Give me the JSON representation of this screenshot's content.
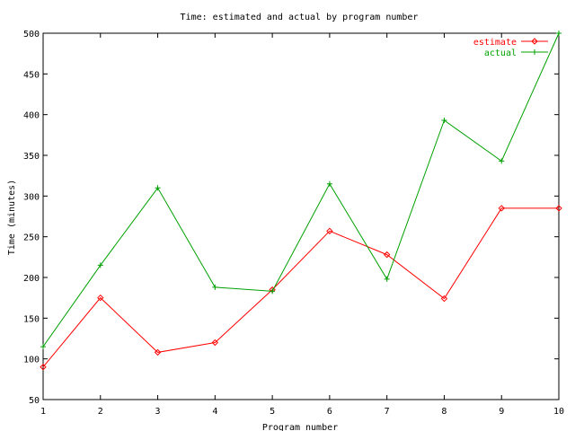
{
  "chart_data": {
    "type": "line",
    "title": "Time: estimated and actual by program number",
    "xlabel": "Program number",
    "ylabel": "Time (minutes)",
    "xlim": [
      1,
      10
    ],
    "ylim": [
      50,
      500
    ],
    "x_ticks": [
      1,
      2,
      3,
      4,
      5,
      6,
      7,
      8,
      9,
      10
    ],
    "y_ticks": [
      50,
      100,
      150,
      200,
      250,
      300,
      350,
      400,
      450,
      500
    ],
    "x": [
      1,
      2,
      3,
      4,
      5,
      6,
      7,
      8,
      9,
      10
    ],
    "grid": false,
    "legend_position": "top-right",
    "series": [
      {
        "name": "estimate",
        "color": "#ff0000",
        "values": [
          90,
          175,
          108,
          120,
          185,
          257,
          228,
          174,
          285,
          285
        ]
      },
      {
        "name": "actual",
        "color": "#00a000",
        "values": [
          115,
          215,
          310,
          188,
          183,
          315,
          198,
          393,
          343,
          500
        ]
      }
    ]
  }
}
